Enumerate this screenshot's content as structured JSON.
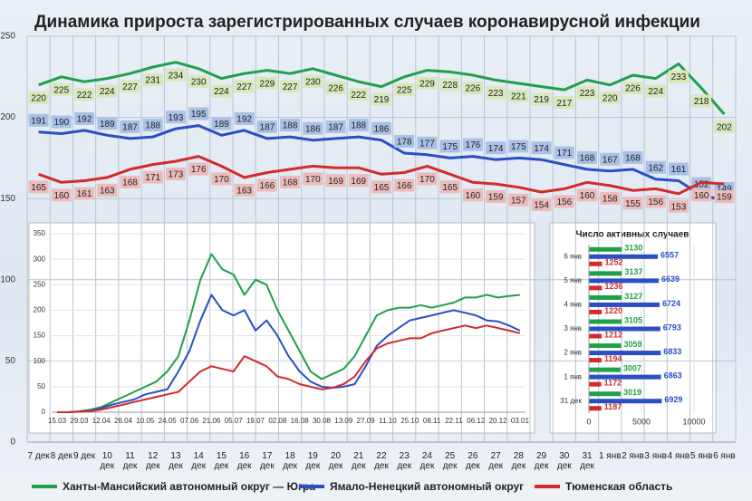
{
  "chart_data": [
    {
      "type": "line",
      "title": "Динамика прироста зарегистрированных случаев коронавирусной инфекции",
      "categories": [
        "7 дек",
        "8 дек",
        "9 дек",
        "10 дек",
        "11 дек",
        "12 дек",
        "13 дек",
        "14 дек",
        "15 дек",
        "16 дек",
        "17 дек",
        "18 дек",
        "19 дек",
        "20 дек",
        "21 дек",
        "22 дек",
        "23 дек",
        "24 дек",
        "25 дек",
        "26 дек",
        "27 дек",
        "28 дек",
        "29 дек",
        "30 дек",
        "31 дек",
        "1 янв",
        "2 янв",
        "3 янв",
        "4 янв",
        "5 янв",
        "6 янв"
      ],
      "series": [
        {
          "name": "Ханты-Мансийский автономный округ — Югра",
          "color": "#20a04a",
          "values": [
            220,
            225,
            222,
            224,
            227,
            231,
            234,
            230,
            224,
            227,
            229,
            227,
            230,
            226,
            222,
            219,
            225,
            229,
            228,
            226,
            223,
            221,
            219,
            217,
            223,
            220,
            226,
            224,
            233,
            218,
            202
          ]
        },
        {
          "name": "Ямало-Ненецкий автономный округ",
          "color": "#2a4fc4",
          "values": [
            191,
            190,
            192,
            189,
            187,
            188,
            193,
            195,
            189,
            192,
            187,
            188,
            186,
            187,
            188,
            186,
            178,
            177,
            175,
            176,
            174,
            175,
            174,
            171,
            168,
            167,
            168,
            162,
            161,
            152,
            149
          ]
        },
        {
          "name": "Тюменская область",
          "color": "#d42a2a",
          "values": [
            165,
            160,
            161,
            163,
            168,
            171,
            173,
            176,
            170,
            163,
            166,
            168,
            170,
            169,
            169,
            165,
            166,
            170,
            165,
            160,
            159,
            157,
            154,
            156,
            160,
            158,
            155,
            156,
            153,
            160,
            159
          ]
        }
      ],
      "ylim": [
        0,
        250
      ],
      "yticks": [
        0,
        50,
        100,
        150,
        200,
        250
      ],
      "grid": true,
      "data_labels": true,
      "legend": "bottom"
    },
    {
      "type": "line",
      "categories": [
        "15.03",
        null,
        "29.03",
        null,
        "12.04",
        null,
        "26.04",
        null,
        "10.05",
        null,
        "24.05",
        null,
        "07.06",
        null,
        "21.06",
        null,
        "05.07",
        null,
        "19.07",
        null,
        "02.08",
        null,
        "16.08",
        null,
        "30.08",
        null,
        "13.09",
        null,
        "27.09",
        null,
        "11.10",
        null,
        "25.10",
        null,
        "08.11",
        null,
        "22.11",
        null,
        "06.12",
        null,
        "20.12",
        null,
        "03.01"
      ],
      "series": [
        {
          "color": "#20a04a",
          "values": [
            0,
            0,
            2,
            5,
            10,
            20,
            30,
            40,
            50,
            60,
            80,
            110,
            180,
            260,
            310,
            280,
            270,
            230,
            260,
            250,
            200,
            160,
            120,
            80,
            65,
            75,
            85,
            110,
            150,
            190,
            200,
            205,
            205,
            210,
            205,
            210,
            215,
            225,
            225,
            230,
            225,
            228,
            230
          ]
        },
        {
          "color": "#2a4fc4",
          "values": [
            0,
            0,
            1,
            3,
            8,
            15,
            20,
            25,
            35,
            40,
            45,
            80,
            120,
            180,
            230,
            200,
            190,
            200,
            160,
            180,
            150,
            110,
            80,
            60,
            50,
            48,
            50,
            55,
            90,
            130,
            150,
            165,
            180,
            185,
            190,
            195,
            200,
            195,
            190,
            180,
            178,
            170,
            160
          ]
        },
        {
          "color": "#d42a2a",
          "values": [
            0,
            0,
            1,
            2,
            5,
            10,
            15,
            20,
            25,
            30,
            35,
            40,
            60,
            80,
            90,
            85,
            80,
            110,
            100,
            90,
            70,
            65,
            55,
            50,
            45,
            48,
            55,
            70,
            100,
            125,
            135,
            140,
            145,
            145,
            155,
            160,
            165,
            170,
            165,
            170,
            165,
            160,
            155
          ]
        }
      ],
      "ylim": [
        0,
        350
      ],
      "yticks": [
        0,
        50,
        100,
        150,
        200,
        250,
        300,
        350
      ],
      "grid": true,
      "data_labels": false
    },
    {
      "type": "hbar",
      "title": "Число активных случаев",
      "categories": [
        "6 янв",
        "5 янв",
        "4 янв",
        "3 янв",
        "2 янв",
        "1 янв",
        "31 дек"
      ],
      "series": [
        {
          "color": "#20a04a",
          "values": [
            3130,
            3137,
            3127,
            3105,
            3059,
            3007,
            3019
          ]
        },
        {
          "color": "#2a4fc4",
          "values": [
            6557,
            6639,
            6724,
            6793,
            6833,
            6863,
            6929
          ]
        },
        {
          "color": "#d42a2a",
          "values": [
            1252,
            1236,
            1220,
            1212,
            1194,
            1172,
            1187
          ]
        }
      ],
      "xlim": [
        0,
        10000
      ],
      "xticks": [
        0,
        5000,
        10000
      ],
      "grid": true,
      "data_labels": true
    }
  ]
}
